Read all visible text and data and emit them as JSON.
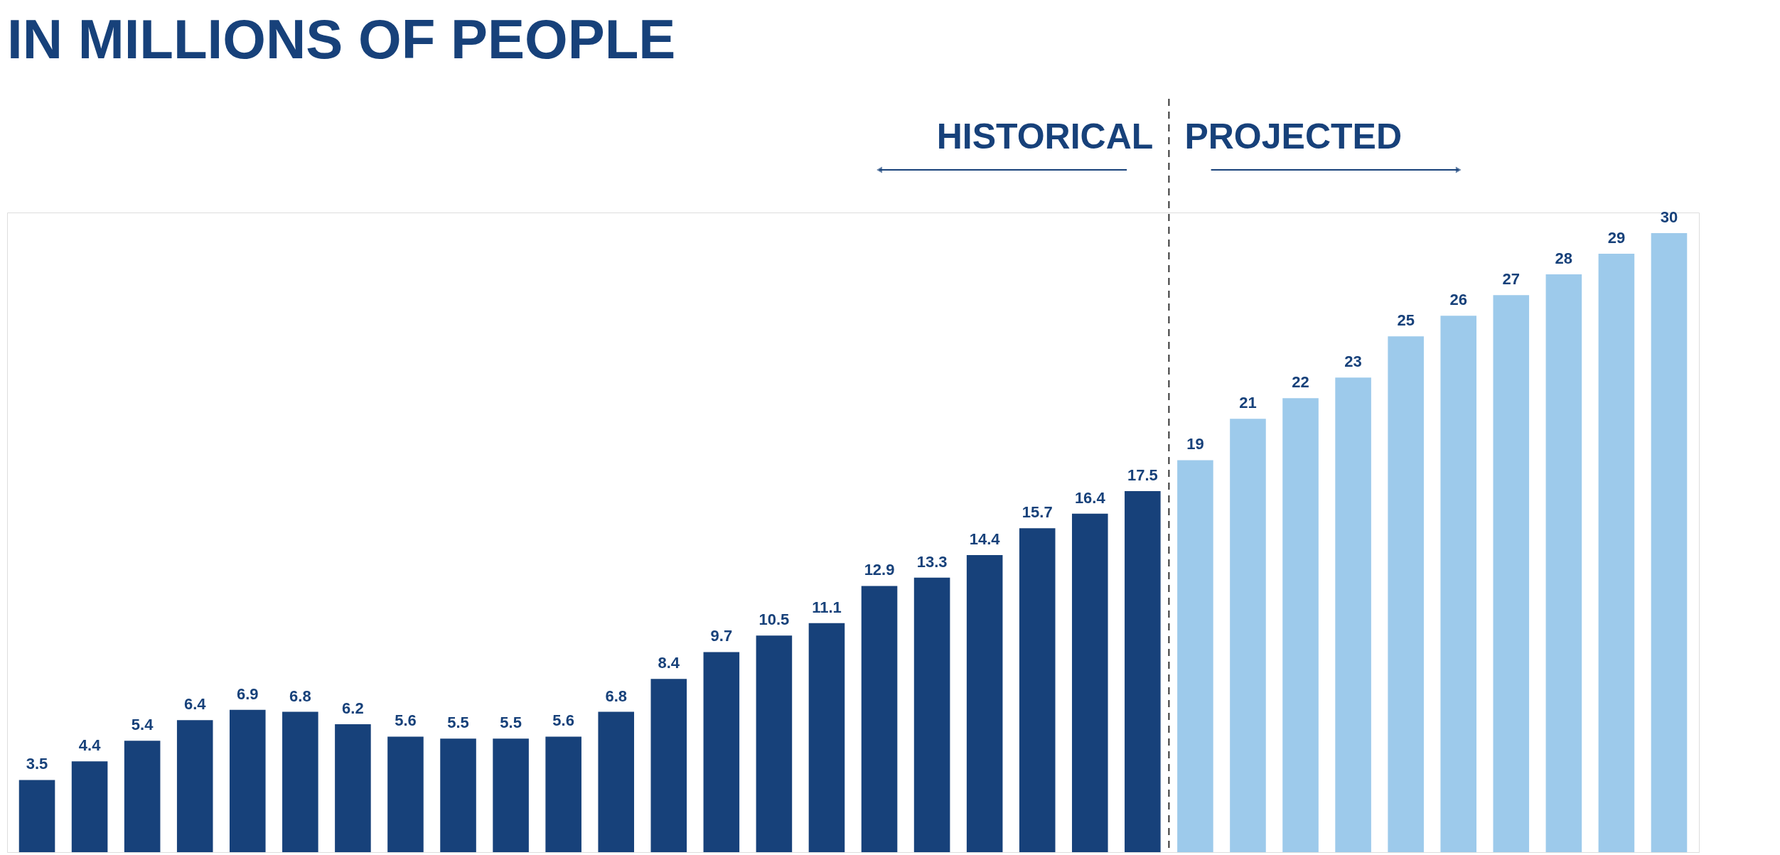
{
  "chart_data": {
    "type": "bar",
    "title": "IN MILLIONS OF PEOPLE",
    "categories": [
      null,
      null,
      null,
      null,
      null,
      null,
      null,
      null,
      null,
      null,
      null,
      null,
      null,
      null,
      null,
      null,
      null,
      null,
      null,
      null,
      null,
      null,
      null,
      null,
      null,
      null,
      null,
      null,
      null,
      null,
      null,
      null
    ],
    "values": [
      3.5,
      4.4,
      5.4,
      6.4,
      6.9,
      6.8,
      6.2,
      5.6,
      5.5,
      5.5,
      5.6,
      6.8,
      8.4,
      9.7,
      10.5,
      11.1,
      12.9,
      13.3,
      14.4,
      15.7,
      16.4,
      17.5,
      19,
      21,
      22,
      23,
      25,
      26,
      27,
      28,
      29,
      30
    ],
    "colors": [
      "#17417a",
      "#17417a",
      "#17417a",
      "#17417a",
      "#17417a",
      "#17417a",
      "#17417a",
      "#17417a",
      "#17417a",
      "#17417a",
      "#17417a",
      "#17417a",
      "#17417a",
      "#17417a",
      "#17417a",
      "#17417a",
      "#17417a",
      "#17417a",
      "#17417a",
      "#17417a",
      "#17417a",
      "#17417a",
      "#9dcaeb",
      "#9dcaeb",
      "#9dcaeb",
      "#9dcaeb",
      "#9dcaeb",
      "#9dcaeb",
      "#9dcaeb",
      "#9dcaeb",
      "#9dcaeb",
      "#9dcaeb"
    ],
    "ylim": [
      0,
      31
    ],
    "tick_labels": false,
    "data_labels": true,
    "annotations": [
      "HISTORICAL",
      "PROJECTED"
    ]
  }
}
